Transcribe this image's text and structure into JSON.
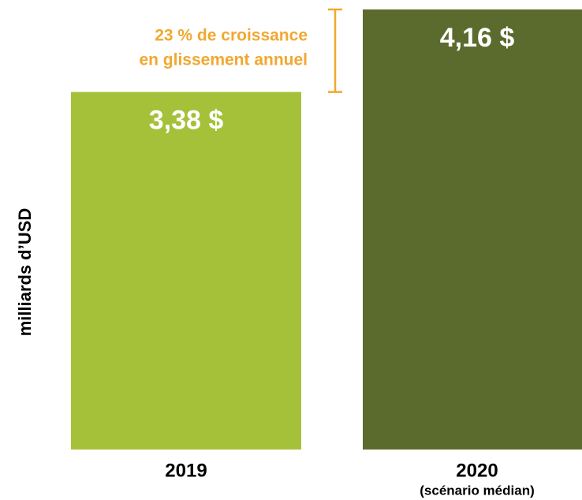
{
  "chart_data": {
    "type": "bar",
    "y_label": "milliards d’USD",
    "categories": [
      "2019",
      "2020"
    ],
    "category_sublabels": [
      null,
      "(scénario médian)"
    ],
    "values": [
      3.38,
      4.16
    ],
    "value_labels": [
      "3,38 $",
      "4,16 $"
    ],
    "colors": [
      "#a5c13a",
      "#5b6b2e"
    ],
    "annotation": {
      "lines": [
        "23 % de croissance",
        "en glissement annuel"
      ],
      "color": "#f0a830"
    }
  }
}
